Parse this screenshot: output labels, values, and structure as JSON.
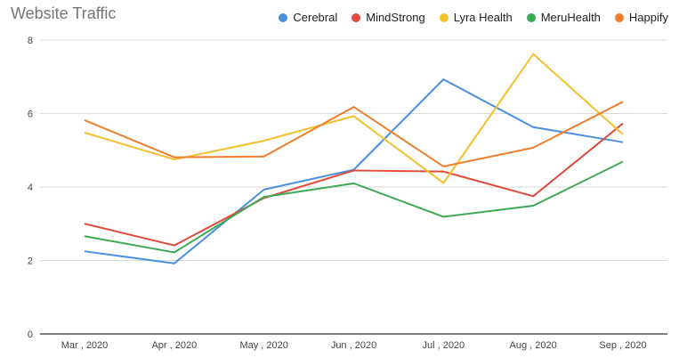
{
  "chart_data": {
    "type": "line",
    "title": "Website Traffic",
    "categories": [
      "Mar , 2020",
      "Apr , 2020",
      "May , 2020",
      "Jun , 2020",
      "Jul , 2020",
      "Aug , 2020",
      "Sep , 2020"
    ],
    "ylim": [
      0,
      8
    ],
    "yticks": [
      0,
      2,
      4,
      6,
      8
    ],
    "grid": true,
    "legend_position": "top-right",
    "series": [
      {
        "name": "Cerebral",
        "color": "#4a8fe0",
        "values": [
          2.25,
          1.92,
          3.93,
          4.47,
          6.93,
          5.63,
          5.22
        ]
      },
      {
        "name": "MindStrong",
        "color": "#e04a3b",
        "values": [
          3.0,
          2.41,
          3.7,
          4.45,
          4.42,
          3.75,
          5.73
        ]
      },
      {
        "name": "Lyra Health",
        "color": "#f3c02b",
        "values": [
          5.48,
          4.75,
          5.26,
          5.93,
          4.11,
          7.62,
          5.43
        ]
      },
      {
        "name": "MeruHealth",
        "color": "#3caa55",
        "values": [
          2.66,
          2.22,
          3.73,
          4.1,
          3.19,
          3.49,
          4.69
        ]
      },
      {
        "name": "Happify",
        "color": "#f07d2c",
        "values": [
          5.82,
          4.81,
          4.83,
          6.18,
          4.56,
          5.07,
          6.32
        ]
      }
    ]
  }
}
